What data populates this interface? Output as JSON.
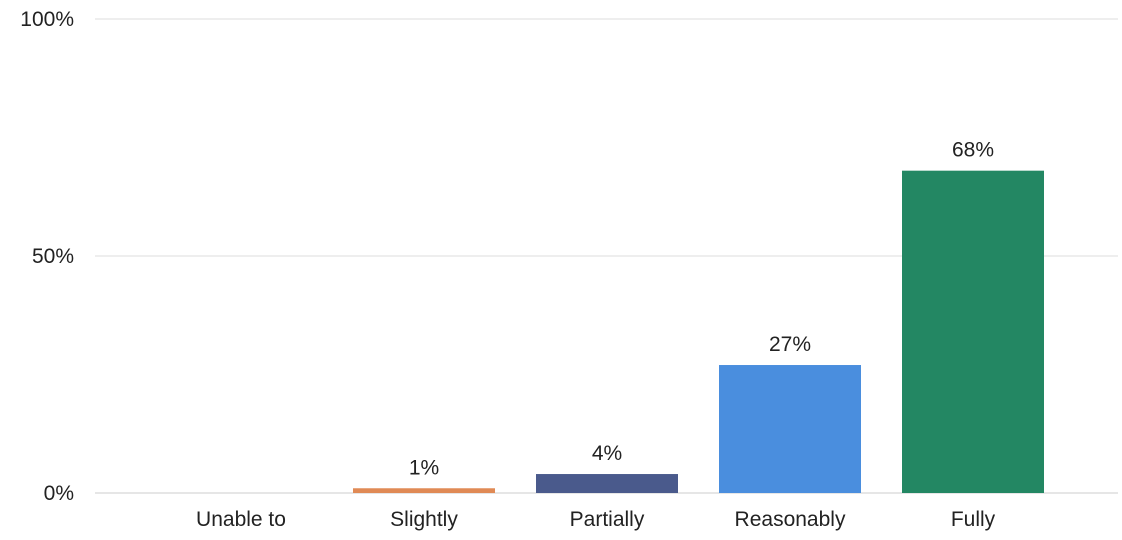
{
  "chart_data": {
    "type": "bar",
    "title": "",
    "xlabel": "",
    "ylabel": "",
    "categories": [
      "Unable to",
      "Slightly",
      "Partially",
      "Reasonably",
      "Fully"
    ],
    "values": [
      0,
      1,
      4,
      27,
      68
    ],
    "data_labels": [
      "",
      "1%",
      "4%",
      "27%",
      "68%"
    ],
    "ylim": [
      0,
      100
    ],
    "yticks": [
      0,
      50,
      100
    ],
    "ytick_labels": [
      "0%",
      "50%",
      "100%"
    ],
    "colors": [
      "#d99a6c",
      "#e08a55",
      "#4a5a8c",
      "#4a8ede",
      "#238763"
    ],
    "grid": true,
    "legend": "none"
  }
}
